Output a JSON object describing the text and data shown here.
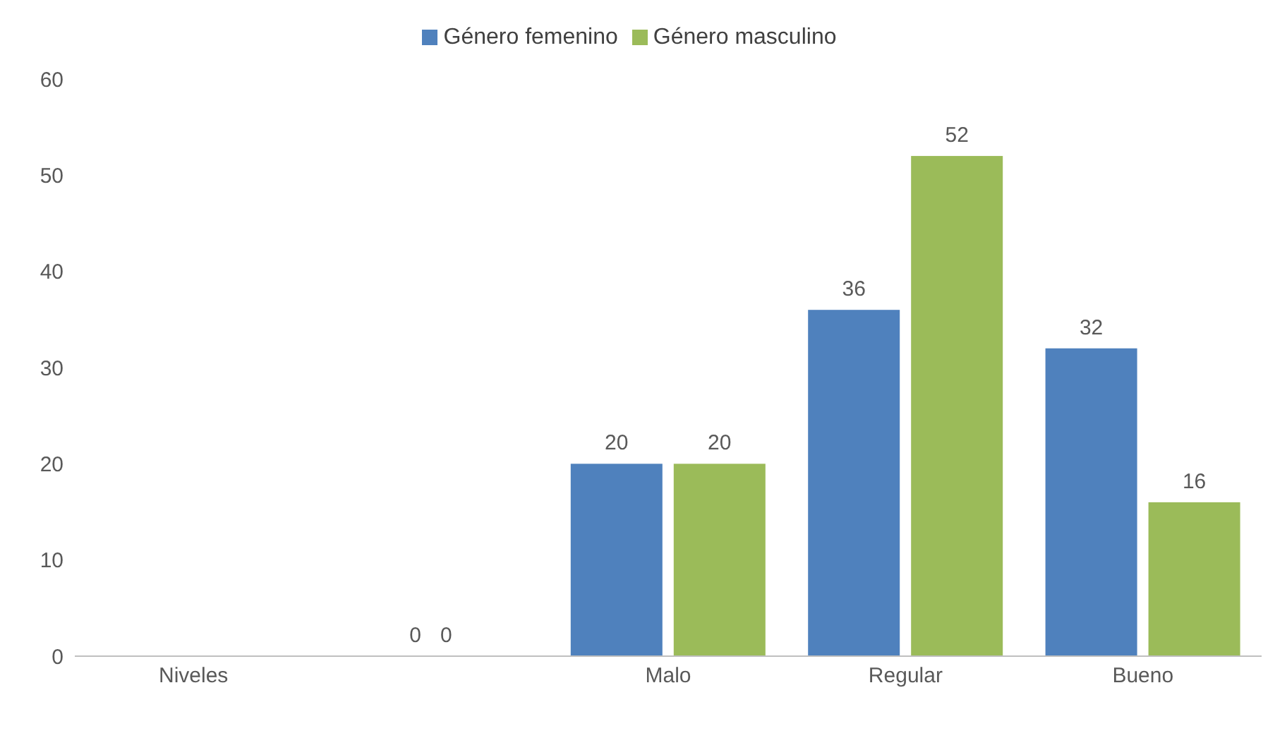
{
  "chart_data": {
    "type": "bar",
    "categories": [
      "Niveles",
      null,
      "Malo",
      "Regular",
      "Bueno"
    ],
    "series": [
      {
        "name": "Género femenino",
        "color": "#4f81bd",
        "values": [
          null,
          0,
          20,
          36,
          32
        ]
      },
      {
        "name": "Género masculino",
        "color": "#9bbb59",
        "values": [
          null,
          0,
          20,
          52,
          16
        ]
      }
    ],
    "ylim": [
      0,
      60
    ],
    "yticks": [
      0,
      10,
      20,
      30,
      40,
      50,
      60
    ],
    "grid": false,
    "legend": "top",
    "data_labels": true
  }
}
